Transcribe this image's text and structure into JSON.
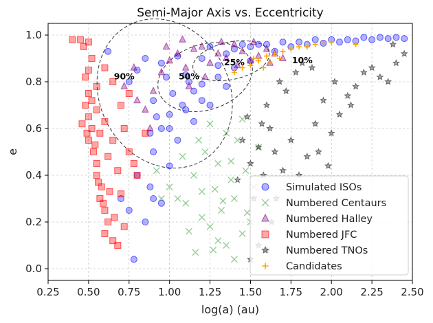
{
  "chart_data": {
    "type": "scatter",
    "title": "Semi-Major Axis vs. Eccentricity",
    "xlabel": "log(a) (au)",
    "ylabel": "e",
    "xlim": [
      0.25,
      2.5
    ],
    "ylim": [
      -0.05,
      1.05
    ],
    "xticks": [
      "0.25",
      "0.50",
      "0.75",
      "1.00",
      "1.25",
      "1.50",
      "1.75",
      "2.00",
      "2.25",
      "2.50"
    ],
    "yticks": [
      "0.0",
      "0.2",
      "0.4",
      "0.6",
      "0.8",
      "1.0"
    ],
    "grid": true,
    "legend_position": "lower-right",
    "series": [
      {
        "name": "Simulated ISOs",
        "marker": "circle",
        "color": "#0000ff",
        "points": [
          [
            0.62,
            0.93
          ],
          [
            0.75,
            0.8
          ],
          [
            0.8,
            0.85
          ],
          [
            0.85,
            0.9
          ],
          [
            0.9,
            0.72
          ],
          [
            0.95,
            0.88
          ],
          [
            1.0,
            0.66
          ],
          [
            1.05,
            0.91
          ],
          [
            1.1,
            0.83
          ],
          [
            1.15,
            0.76
          ],
          [
            1.2,
            0.9
          ],
          [
            1.25,
            0.95
          ],
          [
            1.3,
            0.87
          ],
          [
            1.35,
            0.92
          ],
          [
            1.4,
            0.94
          ],
          [
            1.45,
            0.96
          ],
          [
            1.5,
            0.95
          ],
          [
            1.55,
            0.96
          ],
          [
            1.6,
            0.96
          ],
          [
            1.7,
            0.97
          ],
          [
            1.8,
            0.97
          ],
          [
            1.9,
            0.98
          ],
          [
            2.0,
            0.98
          ],
          [
            2.1,
            0.98
          ],
          [
            2.2,
            0.99
          ],
          [
            2.3,
            0.99
          ],
          [
            2.4,
            0.99
          ],
          [
            2.45,
            0.985
          ],
          [
            0.9,
            0.5
          ],
          [
            0.95,
            0.6
          ],
          [
            1.0,
            0.44
          ],
          [
            1.05,
            0.55
          ],
          [
            1.1,
            0.68
          ],
          [
            1.15,
            0.63
          ],
          [
            1.2,
            0.72
          ],
          [
            1.25,
            0.7
          ],
          [
            0.7,
            0.3
          ],
          [
            0.75,
            0.25
          ],
          [
            0.8,
            0.4
          ],
          [
            0.85,
            0.2
          ],
          [
            0.78,
            0.04
          ],
          [
            0.9,
            0.3
          ],
          [
            0.88,
            0.35
          ],
          [
            0.95,
            0.28
          ],
          [
            1.2,
            0.79
          ],
          [
            1.3,
            0.82
          ],
          [
            1.35,
            0.78
          ],
          [
            1.4,
            0.86
          ],
          [
            1.5,
            0.89
          ],
          [
            1.65,
            0.93
          ],
          [
            1.75,
            0.95
          ],
          [
            1.85,
            0.96
          ],
          [
            1.95,
            0.965
          ],
          [
            2.05,
            0.97
          ],
          [
            2.15,
            0.975
          ],
          [
            2.25,
            0.98
          ],
          [
            2.35,
            0.985
          ],
          [
            1.0,
            0.6
          ],
          [
            1.02,
            0.75
          ],
          [
            1.08,
            0.7
          ],
          [
            1.12,
            0.8
          ],
          [
            0.98,
            0.82
          ],
          [
            0.92,
            0.65
          ],
          [
            0.88,
            0.58
          ]
        ]
      },
      {
        "name": "Numbered Centaurs",
        "marker": "x",
        "color": "#2ca02c",
        "points": [
          [
            1.0,
            0.35
          ],
          [
            1.05,
            0.3
          ],
          [
            1.1,
            0.28
          ],
          [
            1.15,
            0.4
          ],
          [
            1.2,
            0.22
          ],
          [
            1.22,
            0.5
          ],
          [
            1.25,
            0.18
          ],
          [
            1.28,
            0.34
          ],
          [
            1.3,
            0.45
          ],
          [
            1.32,
            0.25
          ],
          [
            1.35,
            0.1
          ],
          [
            1.38,
            0.38
          ],
          [
            1.4,
            0.3
          ],
          [
            1.42,
            0.55
          ],
          [
            1.45,
            0.15
          ],
          [
            1.47,
            0.42
          ],
          [
            1.5,
            0.2
          ],
          [
            1.52,
            0.35
          ],
          [
            1.08,
            0.48
          ],
          [
            1.18,
            0.55
          ],
          [
            1.25,
            0.62
          ],
          [
            1.35,
            0.58
          ],
          [
            1.45,
            0.64
          ],
          [
            1.12,
            0.16
          ],
          [
            1.27,
            0.08
          ],
          [
            1.4,
            0.04
          ],
          [
            1.2,
            0.33
          ],
          [
            1.33,
            0.29
          ],
          [
            0.95,
            0.3
          ],
          [
            0.92,
            0.42
          ],
          [
            1.16,
            0.07
          ],
          [
            1.3,
            0.12
          ],
          [
            1.55,
            0.52
          ],
          [
            1.48,
            0.24
          ],
          [
            1.38,
            0.46
          ]
        ]
      },
      {
        "name": "Numbered Halley",
        "marker": "triangle",
        "color": "#800080",
        "points": [
          [
            0.9,
            0.76
          ],
          [
            0.95,
            0.84
          ],
          [
            1.0,
            0.89
          ],
          [
            1.05,
            0.92
          ],
          [
            1.1,
            0.86
          ],
          [
            1.15,
            0.94
          ],
          [
            1.2,
            0.95
          ],
          [
            1.25,
            0.88
          ],
          [
            1.3,
            0.92
          ],
          [
            1.35,
            0.9
          ],
          [
            1.4,
            0.96
          ],
          [
            1.45,
            0.93
          ],
          [
            1.5,
            0.89
          ],
          [
            1.55,
            0.91
          ],
          [
            1.6,
            0.94
          ],
          [
            1.65,
            0.92
          ],
          [
            1.7,
            0.9
          ],
          [
            0.8,
            0.72
          ],
          [
            0.85,
            0.68
          ],
          [
            0.78,
            0.86
          ],
          [
            0.72,
            0.78
          ],
          [
            1.12,
            0.78
          ],
          [
            1.22,
            0.82
          ],
          [
            1.32,
            0.97
          ],
          [
            1.42,
            0.87
          ],
          [
            1.52,
            0.97
          ],
          [
            0.98,
            0.95
          ],
          [
            1.08,
            0.98
          ],
          [
            1.62,
            0.88
          ],
          [
            0.88,
            0.6
          ]
        ]
      },
      {
        "name": "Numbered JFC",
        "marker": "square",
        "color": "#ff0000",
        "points": [
          [
            0.4,
            0.98
          ],
          [
            0.45,
            0.98
          ],
          [
            0.47,
            0.95
          ],
          [
            0.48,
            0.82
          ],
          [
            0.5,
            0.85
          ],
          [
            0.5,
            0.75
          ],
          [
            0.48,
            0.7
          ],
          [
            0.5,
            0.65
          ],
          [
            0.52,
            0.6
          ],
          [
            0.5,
            0.55
          ],
          [
            0.53,
            0.5
          ],
          [
            0.55,
            0.45
          ],
          [
            0.55,
            0.4
          ],
          [
            0.58,
            0.35
          ],
          [
            0.57,
            0.3
          ],
          [
            0.6,
            0.25
          ],
          [
            0.62,
            0.2
          ],
          [
            0.6,
            0.15
          ],
          [
            0.65,
            0.12
          ],
          [
            0.68,
            0.1
          ],
          [
            0.55,
            0.68
          ],
          [
            0.57,
            0.58
          ],
          [
            0.6,
            0.63
          ],
          [
            0.62,
            0.48
          ],
          [
            0.65,
            0.55
          ],
          [
            0.68,
            0.42
          ],
          [
            0.7,
            0.32
          ],
          [
            0.72,
            0.6
          ],
          [
            0.75,
            0.5
          ],
          [
            0.78,
            0.45
          ],
          [
            0.8,
            0.4
          ],
          [
            0.75,
            0.75
          ],
          [
            0.7,
            0.7
          ],
          [
            0.65,
            0.8
          ],
          [
            0.55,
            0.78
          ],
          [
            0.52,
            0.72
          ],
          [
            0.46,
            0.62
          ],
          [
            0.49,
            0.58
          ],
          [
            0.54,
            0.53
          ],
          [
            0.56,
            0.37
          ],
          [
            0.59,
            0.28
          ],
          [
            0.63,
            0.33
          ],
          [
            0.66,
            0.22
          ],
          [
            0.72,
            0.18
          ],
          [
            0.5,
            0.97
          ],
          [
            0.52,
            0.9
          ],
          [
            0.6,
            0.86
          ],
          [
            0.85,
            0.58
          ]
        ]
      },
      {
        "name": "Numbered TNOs",
        "marker": "star",
        "color": "#000000",
        "points": [
          [
            1.5,
            0.45
          ],
          [
            1.55,
            0.52
          ],
          [
            1.6,
            0.7
          ],
          [
            1.62,
            0.6
          ],
          [
            1.65,
            0.5
          ],
          [
            1.7,
            0.42
          ],
          [
            1.75,
            0.55
          ],
          [
            1.8,
            0.4
          ],
          [
            1.85,
            0.48
          ],
          [
            1.9,
            0.62
          ],
          [
            1.95,
            0.72
          ],
          [
            2.0,
            0.58
          ],
          [
            2.05,
            0.66
          ],
          [
            2.1,
            0.74
          ],
          [
            2.15,
            0.78
          ],
          [
            2.2,
            0.84
          ],
          [
            2.25,
            0.86
          ],
          [
            2.3,
            0.82
          ],
          [
            2.35,
            0.8
          ],
          [
            2.4,
            0.88
          ],
          [
            2.45,
            0.92
          ],
          [
            1.45,
            0.55
          ],
          [
            1.42,
            0.38
          ],
          [
            1.52,
            0.3
          ],
          [
            1.58,
            0.4
          ],
          [
            1.68,
            0.8
          ],
          [
            1.72,
            0.76
          ],
          [
            1.78,
            0.84
          ],
          [
            1.82,
            0.88
          ],
          [
            1.88,
            0.86
          ],
          [
            1.5,
            0.04
          ],
          [
            1.55,
            0.1
          ],
          [
            1.6,
            0.08
          ],
          [
            1.63,
            0.2
          ],
          [
            1.48,
            0.65
          ],
          [
            1.92,
            0.5
          ],
          [
            1.98,
            0.44
          ],
          [
            2.02,
            0.8
          ],
          [
            2.12,
            0.7
          ],
          [
            2.38,
            0.96
          ],
          [
            1.66,
            0.3
          ],
          [
            1.57,
            0.62
          ]
        ]
      },
      {
        "name": "Candidates",
        "marker": "plus",
        "color": "#ffa500",
        "points": [
          [
            1.4,
            0.84
          ],
          [
            1.45,
            0.86
          ],
          [
            1.5,
            0.87
          ],
          [
            1.55,
            0.89
          ],
          [
            1.6,
            0.91
          ],
          [
            1.62,
            0.88
          ],
          [
            1.65,
            0.92
          ],
          [
            1.7,
            0.93
          ],
          [
            1.75,
            0.94
          ],
          [
            1.8,
            0.95
          ],
          [
            1.85,
            0.95
          ],
          [
            1.9,
            0.96
          ],
          [
            1.95,
            0.965
          ],
          [
            2.0,
            0.97
          ],
          [
            2.15,
            0.96
          ],
          [
            1.52,
            0.9
          ],
          [
            1.58,
            0.86
          ],
          [
            1.68,
            0.9
          ]
        ]
      }
    ],
    "contours": [
      {
        "label": "90%",
        "label_x": 0.72,
        "label_y": 0.81,
        "center": [
          0.97,
          0.75
        ],
        "rx": 0.4,
        "ry": 0.33,
        "angle": -28
      },
      {
        "label": "50%",
        "label_x": 1.12,
        "label_y": 0.81,
        "center": [
          1.22,
          0.82
        ],
        "rx": 0.3,
        "ry": 0.14,
        "angle": -18
      },
      {
        "label": "25%",
        "label_x": 1.4,
        "label_y": 0.87,
        "center": [
          1.38,
          0.89
        ],
        "rx": 0.24,
        "ry": 0.08,
        "angle": -12
      },
      {
        "label": "10%",
        "label_x": 1.82,
        "label_y": 0.88,
        "center": null,
        "rx": null,
        "ry": null,
        "angle": null
      }
    ]
  }
}
